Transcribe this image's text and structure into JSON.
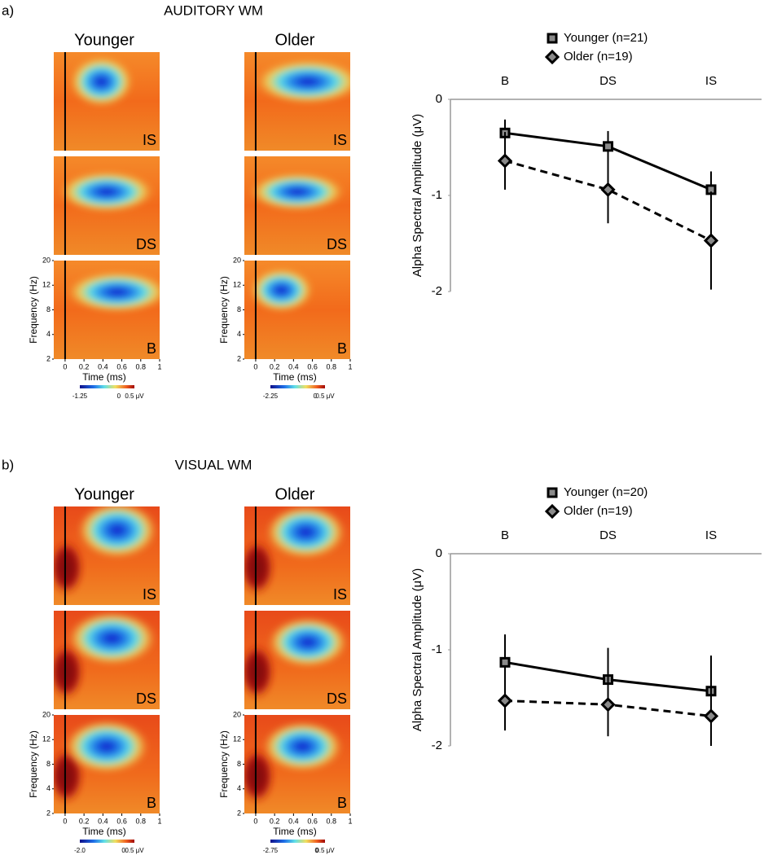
{
  "panels": [
    {
      "label": "a)",
      "title": "AUDITORY WM"
    },
    {
      "label": "b)",
      "title": "VISUAL WM"
    }
  ],
  "chart_data": [
    {
      "type": "heatmap",
      "groups": [
        "Younger",
        "Older"
      ],
      "conditions": [
        "IS",
        "DS",
        "B"
      ],
      "ylabel": "Frequency (Hz)",
      "yticks": [
        2,
        4,
        8,
        12,
        20
      ],
      "xlabel": "Time (ms)",
      "xlim": [
        -0.12,
        1
      ],
      "xticks": [
        0,
        0.2,
        0.4,
        0.6,
        0.8,
        1
      ],
      "colorbars": [
        {
          "clim": [
            -1.25,
            0.5
          ],
          "ticks": [
            -1.25,
            0,
            {
              "value": 0.5,
              "label": "0.5 μV"
            }
          ]
        },
        {
          "clim": [
            -2.25,
            0.5
          ],
          "ticks": [
            -2.25,
            0,
            {
              "value": 0.5,
              "label": "0.5 μV"
            }
          ]
        }
      ]
    },
    {
      "type": "line",
      "categories": [
        "B",
        "DS",
        "IS"
      ],
      "ylabel": "Alpha Spectral Amplitude (μV)",
      "ylim": [
        -2,
        0
      ],
      "yticks": [
        0,
        -1,
        -2
      ],
      "series": [
        {
          "name": "Younger (n=21)",
          "color": "#000000",
          "marker": "square",
          "dashed": false,
          "values": [
            -0.35,
            -0.49,
            -0.94
          ],
          "errors": [
            0.14,
            0.16,
            0.19
          ]
        },
        {
          "name": "Older (n=19)",
          "color": "#000000",
          "marker": "diamond",
          "dashed": true,
          "values": [
            -0.64,
            -0.94,
            -1.47
          ],
          "errors": [
            0.3,
            0.35,
            0.51
          ]
        }
      ]
    },
    {
      "type": "heatmap",
      "groups": [
        "Younger",
        "Older"
      ],
      "conditions": [
        "IS",
        "DS",
        "B"
      ],
      "ylabel": "Frequency (Hz)",
      "yticks": [
        2,
        4,
        8,
        12,
        20
      ],
      "xlabel": "Time (ms)",
      "xlim": [
        -0.12,
        1
      ],
      "xticks": [
        0,
        0.2,
        0.4,
        0.6,
        0.8,
        1
      ],
      "colorbars": [
        {
          "clim": [
            -2,
            0.5
          ],
          "ticks": [
            {
              "value": -2,
              "label": "-2.0"
            },
            0,
            {
              "value": 0.5,
              "label": "0.5 μV"
            }
          ]
        },
        {
          "clim": [
            -2.75,
            0.5
          ],
          "ticks": [
            -2.75,
            0,
            {
              "value": 0.5,
              "label": "0.5 μV"
            }
          ]
        }
      ]
    },
    {
      "type": "line",
      "categories": [
        "B",
        "DS",
        "IS"
      ],
      "ylabel": "Alpha Spectral Amplitude (μV)",
      "ylim": [
        -2,
        0
      ],
      "yticks": [
        0,
        -1,
        -2
      ],
      "series": [
        {
          "name": "Younger (n=20)",
          "color": "#000000",
          "marker": "square",
          "dashed": false,
          "values": [
            -1.13,
            -1.31,
            -1.43
          ],
          "errors": [
            0.29,
            0.33,
            0.37
          ]
        },
        {
          "name": "Older (n=19)",
          "color": "#000000",
          "marker": "diamond",
          "dashed": true,
          "values": [
            -1.53,
            -1.57,
            -1.69
          ],
          "errors": [
            0.31,
            0.33,
            0.31
          ]
        }
      ]
    }
  ]
}
